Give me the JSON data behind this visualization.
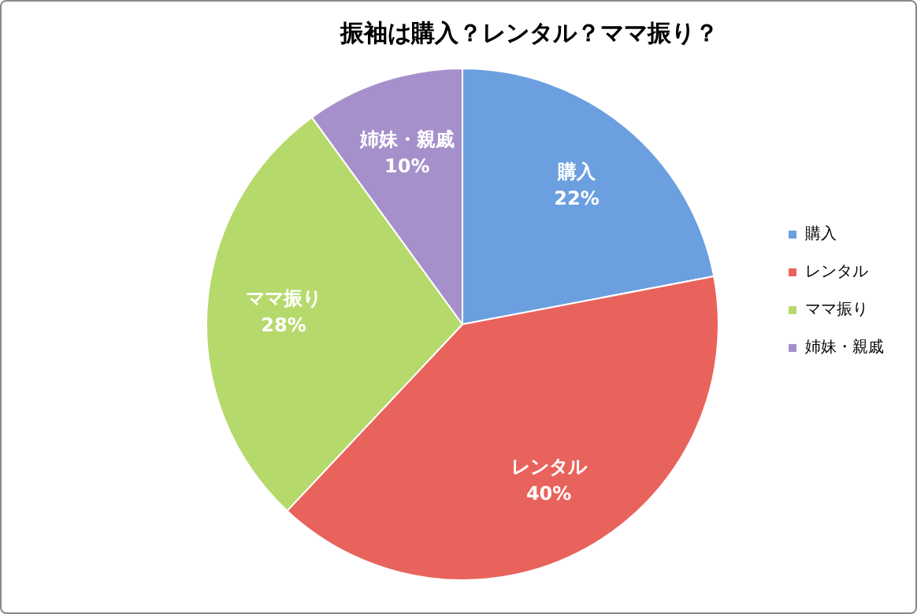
{
  "chart_data": {
    "type": "pie",
    "title": "振袖は購入？レンタル？ママ振り？",
    "categories": [
      "購入",
      "レンタル",
      "ママ振り",
      "姉妹・親戚"
    ],
    "values": [
      22,
      40,
      28,
      10
    ],
    "value_labels": [
      "22%",
      "40%",
      "28%",
      "10%"
    ],
    "colors": [
      "#6b9fe0",
      "#e9635d",
      "#b6d96c",
      "#a690cb"
    ],
    "legend": "right"
  }
}
